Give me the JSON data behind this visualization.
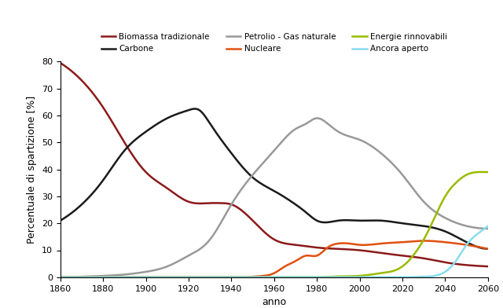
{
  "title": "",
  "xlabel": "anno",
  "ylabel": "Percentuale di spartizione [%]",
  "xlim": [
    1860,
    2060
  ],
  "ylim": [
    0,
    80
  ],
  "yticks": [
    0,
    10,
    20,
    30,
    40,
    50,
    60,
    70,
    80
  ],
  "xticks": [
    1860,
    1880,
    1900,
    1920,
    1940,
    1960,
    1980,
    2000,
    2020,
    2040,
    2060
  ],
  "series": [
    {
      "label": "Biomassa tradizionale",
      "color": "#8B1A1A",
      "points": [
        [
          1860,
          79.5
        ],
        [
          1870,
          73
        ],
        [
          1880,
          63
        ],
        [
          1890,
          50
        ],
        [
          1900,
          39
        ],
        [
          1910,
          33
        ],
        [
          1920,
          28
        ],
        [
          1930,
          27.5
        ],
        [
          1935,
          27.5
        ],
        [
          1940,
          27
        ],
        [
          1950,
          21
        ],
        [
          1960,
          14
        ],
        [
          1970,
          12
        ],
        [
          1980,
          11
        ],
        [
          1990,
          10.5
        ],
        [
          2000,
          10
        ],
        [
          2010,
          9
        ],
        [
          2020,
          8
        ],
        [
          2030,
          7
        ],
        [
          2040,
          5.5
        ],
        [
          2050,
          4.5
        ],
        [
          2060,
          4
        ]
      ]
    },
    {
      "label": "Carbone",
      "color": "#1A1A1A",
      "points": [
        [
          1860,
          21
        ],
        [
          1870,
          27
        ],
        [
          1880,
          36
        ],
        [
          1890,
          47
        ],
        [
          1900,
          54
        ],
        [
          1910,
          59
        ],
        [
          1920,
          62
        ],
        [
          1925,
          62
        ],
        [
          1930,
          57
        ],
        [
          1940,
          46
        ],
        [
          1950,
          37
        ],
        [
          1960,
          32
        ],
        [
          1970,
          27
        ],
        [
          1975,
          24
        ],
        [
          1980,
          21
        ],
        [
          1990,
          21
        ],
        [
          2000,
          21
        ],
        [
          2010,
          21
        ],
        [
          2020,
          20
        ],
        [
          2030,
          19
        ],
        [
          2040,
          17
        ],
        [
          2050,
          13
        ],
        [
          2060,
          10.5
        ]
      ]
    },
    {
      "label": "Petrolio - Gas naturale",
      "color": "#999999",
      "points": [
        [
          1860,
          0
        ],
        [
          1870,
          0.2
        ],
        [
          1880,
          0.5
        ],
        [
          1890,
          1
        ],
        [
          1900,
          2
        ],
        [
          1910,
          4
        ],
        [
          1920,
          8
        ],
        [
          1930,
          14
        ],
        [
          1940,
          27
        ],
        [
          1950,
          38
        ],
        [
          1960,
          47
        ],
        [
          1970,
          55
        ],
        [
          1975,
          57
        ],
        [
          1980,
          59
        ],
        [
          1985,
          57
        ],
        [
          1990,
          54
        ],
        [
          2000,
          51
        ],
        [
          2010,
          46
        ],
        [
          2020,
          38
        ],
        [
          2030,
          28
        ],
        [
          2040,
          22
        ],
        [
          2050,
          19
        ],
        [
          2060,
          18
        ]
      ]
    },
    {
      "label": "Nucleare",
      "color": "#E05010",
      "points": [
        [
          1860,
          0
        ],
        [
          1870,
          0
        ],
        [
          1880,
          0
        ],
        [
          1890,
          0
        ],
        [
          1900,
          0
        ],
        [
          1910,
          0
        ],
        [
          1920,
          0
        ],
        [
          1930,
          0
        ],
        [
          1940,
          0
        ],
        [
          1945,
          0
        ],
        [
          1950,
          0.2
        ],
        [
          1955,
          0.5
        ],
        [
          1960,
          1.5
        ],
        [
          1965,
          4
        ],
        [
          1970,
          6
        ],
        [
          1975,
          8
        ],
        [
          1980,
          8
        ],
        [
          1985,
          11
        ],
        [
          1990,
          12.5
        ],
        [
          1995,
          12.5
        ],
        [
          2000,
          12
        ],
        [
          2010,
          12.5
        ],
        [
          2020,
          13
        ],
        [
          2030,
          13.5
        ],
        [
          2040,
          13
        ],
        [
          2050,
          12
        ],
        [
          2060,
          10.5
        ]
      ]
    },
    {
      "label": "Energie rinnovabili",
      "color": "#99BB00",
      "points": [
        [
          1860,
          0
        ],
        [
          1870,
          0
        ],
        [
          1880,
          0
        ],
        [
          1890,
          0
        ],
        [
          1900,
          0
        ],
        [
          1910,
          0
        ],
        [
          1920,
          0
        ],
        [
          1930,
          0
        ],
        [
          1940,
          0
        ],
        [
          1950,
          0
        ],
        [
          1960,
          0
        ],
        [
          1970,
          0
        ],
        [
          1975,
          0
        ],
        [
          1980,
          0
        ],
        [
          1990,
          0.3
        ],
        [
          2000,
          0.5
        ],
        [
          2010,
          1.5
        ],
        [
          2020,
          4
        ],
        [
          2025,
          8
        ],
        [
          2030,
          14
        ],
        [
          2035,
          22
        ],
        [
          2040,
          30
        ],
        [
          2045,
          35
        ],
        [
          2050,
          38
        ],
        [
          2055,
          39
        ],
        [
          2060,
          39
        ]
      ]
    },
    {
      "label": "Ancora aperto",
      "color": "#88DDEE",
      "points": [
        [
          1860,
          0
        ],
        [
          1870,
          0
        ],
        [
          1880,
          0
        ],
        [
          1890,
          0
        ],
        [
          1900,
          0
        ],
        [
          1910,
          0
        ],
        [
          1920,
          0
        ],
        [
          1930,
          0
        ],
        [
          1940,
          0
        ],
        [
          1950,
          0
        ],
        [
          1960,
          0
        ],
        [
          1970,
          0
        ],
        [
          1980,
          0
        ],
        [
          1990,
          0
        ],
        [
          2000,
          0
        ],
        [
          2010,
          0
        ],
        [
          2020,
          0
        ],
        [
          2030,
          0.2
        ],
        [
          2035,
          0.5
        ],
        [
          2040,
          2
        ],
        [
          2045,
          6
        ],
        [
          2050,
          12
        ],
        [
          2055,
          16
        ],
        [
          2060,
          19
        ]
      ]
    }
  ],
  "background_color": "#FFFFFF",
  "linewidth": 1.8
}
